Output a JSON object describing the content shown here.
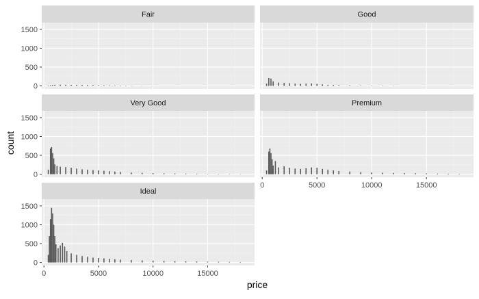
{
  "chart_data": {
    "type": "bar",
    "subtype": "faceted-histogram",
    "xlabel": "price",
    "ylabel": "count",
    "xlim": [
      -200,
      19300
    ],
    "ylim": [
      -80,
      1680
    ],
    "x_ticks": [
      0,
      5000,
      10000,
      15000
    ],
    "y_ticks": [
      0,
      500,
      1000,
      1500
    ],
    "grid": true,
    "bin_width": 100,
    "facets": [
      {
        "label": "Fair",
        "bins": [
          {
            "x": 400,
            "count": 12
          },
          {
            "x": 600,
            "count": 18
          },
          {
            "x": 800,
            "count": 25
          },
          {
            "x": 1000,
            "count": 30
          },
          {
            "x": 1500,
            "count": 32
          },
          {
            "x": 2000,
            "count": 30
          },
          {
            "x": 2500,
            "count": 28
          },
          {
            "x": 3000,
            "count": 28
          },
          {
            "x": 3500,
            "count": 26
          },
          {
            "x": 4000,
            "count": 25
          },
          {
            "x": 4500,
            "count": 22
          },
          {
            "x": 5000,
            "count": 18
          },
          {
            "x": 5500,
            "count": 15
          },
          {
            "x": 6000,
            "count": 12
          },
          {
            "x": 6500,
            "count": 10
          },
          {
            "x": 7000,
            "count": 8
          },
          {
            "x": 7500,
            "count": 6
          },
          {
            "x": 8000,
            "count": 5
          },
          {
            "x": 9000,
            "count": 3
          },
          {
            "x": 10000,
            "count": 2
          }
        ]
      },
      {
        "label": "Good",
        "bins": [
          {
            "x": 400,
            "count": 60
          },
          {
            "x": 600,
            "count": 210
          },
          {
            "x": 800,
            "count": 195
          },
          {
            "x": 1000,
            "count": 120
          },
          {
            "x": 1500,
            "count": 90
          },
          {
            "x": 2000,
            "count": 80
          },
          {
            "x": 2500,
            "count": 70
          },
          {
            "x": 3000,
            "count": 60
          },
          {
            "x": 3500,
            "count": 55
          },
          {
            "x": 4000,
            "count": 60
          },
          {
            "x": 4500,
            "count": 65
          },
          {
            "x": 5000,
            "count": 55
          },
          {
            "x": 5500,
            "count": 40
          },
          {
            "x": 6000,
            "count": 30
          },
          {
            "x": 6500,
            "count": 25
          },
          {
            "x": 7000,
            "count": 20
          },
          {
            "x": 8000,
            "count": 15
          },
          {
            "x": 9000,
            "count": 10
          },
          {
            "x": 10000,
            "count": 8
          },
          {
            "x": 11000,
            "count": 6
          },
          {
            "x": 12000,
            "count": 4
          }
        ]
      },
      {
        "label": "Very Good",
        "bins": [
          {
            "x": 400,
            "count": 120
          },
          {
            "x": 600,
            "count": 680
          },
          {
            "x": 700,
            "count": 720
          },
          {
            "x": 800,
            "count": 560
          },
          {
            "x": 900,
            "count": 420
          },
          {
            "x": 1000,
            "count": 260
          },
          {
            "x": 1200,
            "count": 220
          },
          {
            "x": 1500,
            "count": 200
          },
          {
            "x": 2000,
            "count": 190
          },
          {
            "x": 2500,
            "count": 170
          },
          {
            "x": 3000,
            "count": 150
          },
          {
            "x": 3500,
            "count": 130
          },
          {
            "x": 4000,
            "count": 120
          },
          {
            "x": 4500,
            "count": 110
          },
          {
            "x": 5000,
            "count": 100
          },
          {
            "x": 5500,
            "count": 90
          },
          {
            "x": 6000,
            "count": 80
          },
          {
            "x": 6500,
            "count": 70
          },
          {
            "x": 7000,
            "count": 60
          },
          {
            "x": 8000,
            "count": 45
          },
          {
            "x": 9000,
            "count": 35
          },
          {
            "x": 10000,
            "count": 28
          },
          {
            "x": 11000,
            "count": 22
          },
          {
            "x": 12000,
            "count": 18
          },
          {
            "x": 13000,
            "count": 15
          },
          {
            "x": 14000,
            "count": 12
          },
          {
            "x": 15000,
            "count": 10
          },
          {
            "x": 16000,
            "count": 8
          },
          {
            "x": 17000,
            "count": 6
          },
          {
            "x": 18000,
            "count": 5
          }
        ]
      },
      {
        "label": "Premium",
        "bins": [
          {
            "x": 400,
            "count": 100
          },
          {
            "x": 600,
            "count": 600
          },
          {
            "x": 700,
            "count": 680
          },
          {
            "x": 800,
            "count": 560
          },
          {
            "x": 900,
            "count": 400
          },
          {
            "x": 1000,
            "count": 230
          },
          {
            "x": 1200,
            "count": 350
          },
          {
            "x": 1500,
            "count": 180
          },
          {
            "x": 2000,
            "count": 210
          },
          {
            "x": 2500,
            "count": 170
          },
          {
            "x": 3000,
            "count": 150
          },
          {
            "x": 3500,
            "count": 140
          },
          {
            "x": 4000,
            "count": 160
          },
          {
            "x": 4500,
            "count": 180
          },
          {
            "x": 5000,
            "count": 170
          },
          {
            "x": 5500,
            "count": 140
          },
          {
            "x": 6000,
            "count": 120
          },
          {
            "x": 6500,
            "count": 100
          },
          {
            "x": 7000,
            "count": 85
          },
          {
            "x": 8000,
            "count": 70
          },
          {
            "x": 9000,
            "count": 55
          },
          {
            "x": 10000,
            "count": 45
          },
          {
            "x": 11000,
            "count": 38
          },
          {
            "x": 12000,
            "count": 32
          },
          {
            "x": 13000,
            "count": 28
          },
          {
            "x": 14000,
            "count": 24
          },
          {
            "x": 15000,
            "count": 20
          },
          {
            "x": 16000,
            "count": 16
          },
          {
            "x": 17000,
            "count": 12
          },
          {
            "x": 18000,
            "count": 9
          }
        ]
      },
      {
        "label": "Ideal",
        "bins": [
          {
            "x": 400,
            "count": 200
          },
          {
            "x": 500,
            "count": 700
          },
          {
            "x": 600,
            "count": 1150
          },
          {
            "x": 700,
            "count": 1450
          },
          {
            "x": 800,
            "count": 1300
          },
          {
            "x": 900,
            "count": 1000
          },
          {
            "x": 1000,
            "count": 700
          },
          {
            "x": 1100,
            "count": 480
          },
          {
            "x": 1300,
            "count": 380
          },
          {
            "x": 1500,
            "count": 450
          },
          {
            "x": 1700,
            "count": 520
          },
          {
            "x": 1900,
            "count": 420
          },
          {
            "x": 2100,
            "count": 300
          },
          {
            "x": 2500,
            "count": 240
          },
          {
            "x": 3000,
            "count": 200
          },
          {
            "x": 3500,
            "count": 170
          },
          {
            "x": 4000,
            "count": 150
          },
          {
            "x": 4500,
            "count": 130
          },
          {
            "x": 5000,
            "count": 120
          },
          {
            "x": 5500,
            "count": 110
          },
          {
            "x": 6000,
            "count": 95
          },
          {
            "x": 6500,
            "count": 85
          },
          {
            "x": 7000,
            "count": 75
          },
          {
            "x": 8000,
            "count": 65
          },
          {
            "x": 9000,
            "count": 55
          },
          {
            "x": 10000,
            "count": 48
          },
          {
            "x": 11000,
            "count": 40
          },
          {
            "x": 12000,
            "count": 35
          },
          {
            "x": 13000,
            "count": 30
          },
          {
            "x": 14000,
            "count": 26
          },
          {
            "x": 15000,
            "count": 22
          },
          {
            "x": 16000,
            "count": 18
          },
          {
            "x": 17000,
            "count": 14
          },
          {
            "x": 18000,
            "count": 10
          }
        ]
      }
    ],
    "colors": {
      "panel_background": "#ebebeb",
      "strip_background": "#d9d9d9",
      "grid_major": "#ffffff",
      "grid_minor": "#f2f2f2",
      "bar_fill": "#595959",
      "text": "#4d4d4d",
      "axis_title": "#000000"
    }
  }
}
